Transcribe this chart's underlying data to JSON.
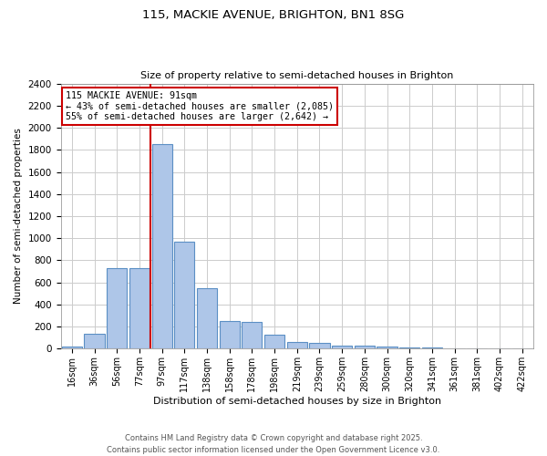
{
  "title1": "115, MACKIE AVENUE, BRIGHTON, BN1 8SG",
  "title2": "Size of property relative to semi-detached houses in Brighton",
  "xlabel": "Distribution of semi-detached houses by size in Brighton",
  "ylabel": "Number of semi-detached properties",
  "bar_labels": [
    "16sqm",
    "36sqm",
    "56sqm",
    "77sqm",
    "97sqm",
    "117sqm",
    "138sqm",
    "158sqm",
    "178sqm",
    "198sqm",
    "219sqm",
    "239sqm",
    "259sqm",
    "280sqm",
    "300sqm",
    "320sqm",
    "341sqm",
    "361sqm",
    "381sqm",
    "402sqm",
    "422sqm"
  ],
  "bar_values": [
    20,
    135,
    730,
    730,
    1850,
    970,
    550,
    250,
    245,
    130,
    65,
    50,
    30,
    25,
    20,
    15,
    10,
    5,
    5,
    5,
    5
  ],
  "bar_color": "#aec6e8",
  "bar_edge_color": "#5b8fc4",
  "property_label": "115 MACKIE AVENUE: 91sqm",
  "annotation_smaller": "← 43% of semi-detached houses are smaller (2,085)",
  "annotation_larger": "55% of semi-detached houses are larger (2,642) →",
  "annotation_box_color": "#ffffff",
  "annotation_box_edge": "#cc0000",
  "red_line_color": "#cc0000",
  "red_line_index": 4,
  "ylim": [
    0,
    2400
  ],
  "yticks": [
    0,
    200,
    400,
    600,
    800,
    1000,
    1200,
    1400,
    1600,
    1800,
    2000,
    2200,
    2400
  ],
  "footer": "Contains HM Land Registry data © Crown copyright and database right 2025.\nContains public sector information licensed under the Open Government Licence v3.0.",
  "bg_color": "#ffffff",
  "grid_color": "#cccccc"
}
